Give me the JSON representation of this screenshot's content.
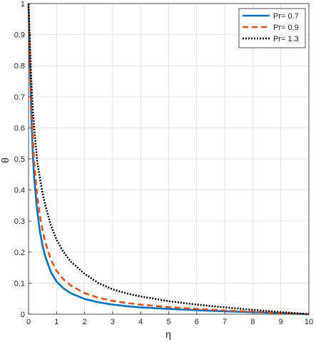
{
  "chart_data": {
    "type": "line",
    "xlabel": "η",
    "ylabel": "θ",
    "xlim": [
      0,
      10
    ],
    "ylim": [
      0,
      1
    ],
    "xticks": [
      0,
      1,
      2,
      3,
      4,
      5,
      6,
      7,
      8,
      9,
      10
    ],
    "yticks": [
      0,
      0.1,
      0.2,
      0.3,
      0.4,
      0.5,
      0.6,
      0.7,
      0.8,
      0.9,
      1
    ],
    "grid": true,
    "legend_position": "top-right",
    "x": [
      0,
      0.05,
      0.1,
      0.15,
      0.2,
      0.3,
      0.4,
      0.5,
      0.6,
      0.8,
      1,
      1.25,
      1.5,
      2,
      2.5,
      3,
      3.5,
      4,
      5,
      6,
      7,
      8,
      9,
      10
    ],
    "series": [
      {
        "name": "Pr= 0.7",
        "color": "#0072BD",
        "dash": "solid",
        "values": [
          1,
          0.8,
          0.64,
          0.52,
          0.44,
          0.34,
          0.27,
          0.22,
          0.185,
          0.135,
          0.105,
          0.083,
          0.068,
          0.049,
          0.038,
          0.031,
          0.026,
          0.022,
          0.017,
          0.013,
          0.0095,
          0.0065,
          0.0035,
          0
        ]
      },
      {
        "name": "Pr= 0.9",
        "color": "#D95319",
        "dash": "dashed",
        "values": [
          1,
          0.82,
          0.68,
          0.57,
          0.49,
          0.39,
          0.32,
          0.27,
          0.23,
          0.175,
          0.14,
          0.112,
          0.093,
          0.068,
          0.053,
          0.043,
          0.036,
          0.031,
          0.023,
          0.017,
          0.012,
          0.008,
          0.004,
          0
        ]
      },
      {
        "name": "Pr= 1.3",
        "color": "#000000",
        "dash": "dotted",
        "values": [
          1,
          0.86,
          0.75,
          0.66,
          0.6,
          0.5,
          0.44,
          0.39,
          0.35,
          0.285,
          0.24,
          0.2,
          0.17,
          0.13,
          0.1,
          0.08,
          0.067,
          0.057,
          0.042,
          0.031,
          0.022,
          0.014,
          0.007,
          0
        ]
      }
    ]
  }
}
